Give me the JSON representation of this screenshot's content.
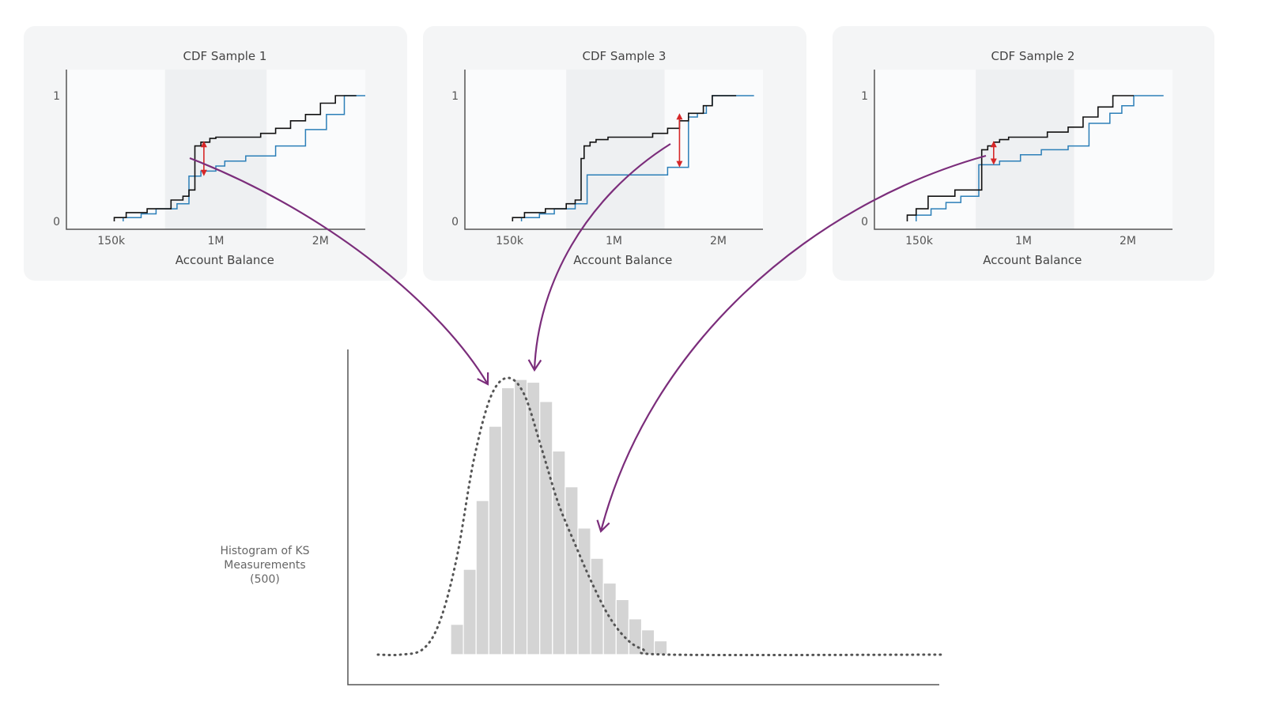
{
  "panels": [
    {
      "title": "CDF Sample 1",
      "xlabel": "Account Balance",
      "xticks": [
        "150k",
        "1M",
        "2M"
      ],
      "yticks": [
        "0",
        "1"
      ],
      "black_step": [
        [
          0.16,
          0
        ],
        [
          0.16,
          0.03
        ],
        [
          0.2,
          0.03
        ],
        [
          0.2,
          0.07
        ],
        [
          0.27,
          0.07
        ],
        [
          0.27,
          0.1
        ],
        [
          0.35,
          0.1
        ],
        [
          0.35,
          0.17
        ],
        [
          0.39,
          0.17
        ],
        [
          0.39,
          0.2
        ],
        [
          0.41,
          0.2
        ],
        [
          0.41,
          0.25
        ],
        [
          0.43,
          0.25
        ],
        [
          0.43,
          0.6
        ],
        [
          0.45,
          0.6
        ],
        [
          0.45,
          0.63
        ],
        [
          0.48,
          0.63
        ],
        [
          0.48,
          0.66
        ],
        [
          0.5,
          0.66
        ],
        [
          0.5,
          0.67
        ],
        [
          0.65,
          0.67
        ],
        [
          0.65,
          0.7
        ],
        [
          0.7,
          0.7
        ],
        [
          0.7,
          0.74
        ],
        [
          0.75,
          0.74
        ],
        [
          0.75,
          0.8
        ],
        [
          0.8,
          0.8
        ],
        [
          0.8,
          0.85
        ],
        [
          0.85,
          0.85
        ],
        [
          0.85,
          0.94
        ],
        [
          0.9,
          0.94
        ],
        [
          0.9,
          1.0
        ],
        [
          0.97,
          1.0
        ]
      ],
      "blue_step": [
        [
          0.19,
          0
        ],
        [
          0.19,
          0.03
        ],
        [
          0.25,
          0.03
        ],
        [
          0.25,
          0.06
        ],
        [
          0.3,
          0.06
        ],
        [
          0.3,
          0.1
        ],
        [
          0.37,
          0.1
        ],
        [
          0.37,
          0.14
        ],
        [
          0.41,
          0.14
        ],
        [
          0.41,
          0.36
        ],
        [
          0.45,
          0.36
        ],
        [
          0.45,
          0.4
        ],
        [
          0.5,
          0.4
        ],
        [
          0.5,
          0.44
        ],
        [
          0.53,
          0.44
        ],
        [
          0.53,
          0.48
        ],
        [
          0.6,
          0.48
        ],
        [
          0.6,
          0.52
        ],
        [
          0.7,
          0.52
        ],
        [
          0.7,
          0.6
        ],
        [
          0.8,
          0.6
        ],
        [
          0.8,
          0.73
        ],
        [
          0.87,
          0.73
        ],
        [
          0.87,
          0.85
        ],
        [
          0.93,
          0.85
        ],
        [
          0.93,
          1.0
        ],
        [
          1.0,
          1.0
        ]
      ],
      "ks_x": 0.46,
      "ks_y": [
        0.36,
        0.64
      ],
      "band_split": [
        0.33,
        0.67
      ]
    },
    {
      "title": "CDF Sample 3",
      "xlabel": "Account Balance",
      "xticks": [
        "150k",
        "1M",
        "2M"
      ],
      "yticks": [
        "0",
        "1"
      ],
      "black_step": [
        [
          0.16,
          0
        ],
        [
          0.16,
          0.03
        ],
        [
          0.2,
          0.03
        ],
        [
          0.2,
          0.07
        ],
        [
          0.27,
          0.07
        ],
        [
          0.27,
          0.1
        ],
        [
          0.34,
          0.1
        ],
        [
          0.34,
          0.14
        ],
        [
          0.37,
          0.14
        ],
        [
          0.37,
          0.17
        ],
        [
          0.39,
          0.17
        ],
        [
          0.39,
          0.5
        ],
        [
          0.4,
          0.5
        ],
        [
          0.4,
          0.6
        ],
        [
          0.42,
          0.6
        ],
        [
          0.42,
          0.63
        ],
        [
          0.44,
          0.63
        ],
        [
          0.44,
          0.65
        ],
        [
          0.48,
          0.65
        ],
        [
          0.48,
          0.67
        ],
        [
          0.63,
          0.67
        ],
        [
          0.63,
          0.7
        ],
        [
          0.68,
          0.7
        ],
        [
          0.68,
          0.74
        ],
        [
          0.72,
          0.74
        ],
        [
          0.72,
          0.8
        ],
        [
          0.75,
          0.8
        ],
        [
          0.75,
          0.86
        ],
        [
          0.8,
          0.86
        ],
        [
          0.8,
          0.92
        ],
        [
          0.83,
          0.92
        ],
        [
          0.83,
          1.0
        ],
        [
          0.91,
          1.0
        ]
      ],
      "blue_step": [
        [
          0.19,
          0
        ],
        [
          0.19,
          0.03
        ],
        [
          0.25,
          0.03
        ],
        [
          0.25,
          0.06
        ],
        [
          0.3,
          0.06
        ],
        [
          0.3,
          0.1
        ],
        [
          0.37,
          0.1
        ],
        [
          0.37,
          0.14
        ],
        [
          0.41,
          0.14
        ],
        [
          0.41,
          0.37
        ],
        [
          0.68,
          0.37
        ],
        [
          0.68,
          0.43
        ],
        [
          0.75,
          0.43
        ],
        [
          0.75,
          0.83
        ],
        [
          0.78,
          0.83
        ],
        [
          0.78,
          0.86
        ],
        [
          0.81,
          0.86
        ],
        [
          0.81,
          0.92
        ],
        [
          0.83,
          0.92
        ],
        [
          0.83,
          1.0
        ],
        [
          0.97,
          1.0
        ]
      ],
      "ks_x": 0.72,
      "ks_y": [
        0.43,
        0.86
      ],
      "band_split": [
        0.34,
        0.67
      ]
    },
    {
      "title": "CDF Sample 2",
      "xlabel": "Account Balance",
      "xticks": [
        "150k",
        "1M",
        "2M"
      ],
      "yticks": [
        "0",
        "1"
      ],
      "black_step": [
        [
          0.11,
          0
        ],
        [
          0.11,
          0.05
        ],
        [
          0.14,
          0.05
        ],
        [
          0.14,
          0.1
        ],
        [
          0.18,
          0.1
        ],
        [
          0.18,
          0.2
        ],
        [
          0.27,
          0.2
        ],
        [
          0.27,
          0.25
        ],
        [
          0.36,
          0.25
        ],
        [
          0.36,
          0.57
        ],
        [
          0.38,
          0.57
        ],
        [
          0.38,
          0.6
        ],
        [
          0.4,
          0.6
        ],
        [
          0.4,
          0.63
        ],
        [
          0.42,
          0.63
        ],
        [
          0.42,
          0.65
        ],
        [
          0.45,
          0.65
        ],
        [
          0.45,
          0.67
        ],
        [
          0.58,
          0.67
        ],
        [
          0.58,
          0.71
        ],
        [
          0.65,
          0.71
        ],
        [
          0.65,
          0.75
        ],
        [
          0.7,
          0.75
        ],
        [
          0.7,
          0.83
        ],
        [
          0.75,
          0.83
        ],
        [
          0.75,
          0.91
        ],
        [
          0.8,
          0.91
        ],
        [
          0.8,
          1.0
        ],
        [
          0.87,
          1.0
        ]
      ],
      "blue_step": [
        [
          0.14,
          0
        ],
        [
          0.14,
          0.05
        ],
        [
          0.19,
          0.05
        ],
        [
          0.19,
          0.1
        ],
        [
          0.24,
          0.1
        ],
        [
          0.24,
          0.15
        ],
        [
          0.29,
          0.15
        ],
        [
          0.29,
          0.2
        ],
        [
          0.35,
          0.2
        ],
        [
          0.35,
          0.45
        ],
        [
          0.42,
          0.45
        ],
        [
          0.42,
          0.48
        ],
        [
          0.49,
          0.48
        ],
        [
          0.49,
          0.53
        ],
        [
          0.56,
          0.53
        ],
        [
          0.56,
          0.57
        ],
        [
          0.65,
          0.57
        ],
        [
          0.65,
          0.6
        ],
        [
          0.72,
          0.6
        ],
        [
          0.72,
          0.78
        ],
        [
          0.79,
          0.78
        ],
        [
          0.79,
          0.86
        ],
        [
          0.83,
          0.86
        ],
        [
          0.83,
          0.92
        ],
        [
          0.87,
          0.92
        ],
        [
          0.87,
          1.0
        ],
        [
          0.97,
          1.0
        ]
      ],
      "ks_x": 0.4,
      "ks_y": [
        0.45,
        0.64
      ],
      "band_split": [
        0.34,
        0.67
      ]
    }
  ],
  "histogram": {
    "label_lines": [
      "Histogram of KS",
      "Measurements",
      "(500)"
    ],
    "bars": [
      0.11,
      0.31,
      0.56,
      0.83,
      0.97,
      1.0,
      0.99,
      0.92,
      0.74,
      0.61,
      0.46,
      0.35,
      0.26,
      0.2,
      0.13,
      0.09,
      0.05
    ],
    "kde": [
      [
        0,
        0.0
      ],
      [
        0.04,
        0.0
      ],
      [
        0.08,
        0.02
      ],
      [
        0.11,
        0.12
      ],
      [
        0.14,
        0.35
      ],
      [
        0.17,
        0.7
      ],
      [
        0.2,
        0.93
      ],
      [
        0.23,
        1.0
      ],
      [
        0.26,
        0.94
      ],
      [
        0.29,
        0.75
      ],
      [
        0.32,
        0.55
      ],
      [
        0.35,
        0.4
      ],
      [
        0.38,
        0.26
      ],
      [
        0.41,
        0.14
      ],
      [
        0.44,
        0.06
      ],
      [
        0.47,
        0.02
      ],
      [
        0.52,
        0.0
      ],
      [
        1.0,
        0.0
      ]
    ]
  }
}
